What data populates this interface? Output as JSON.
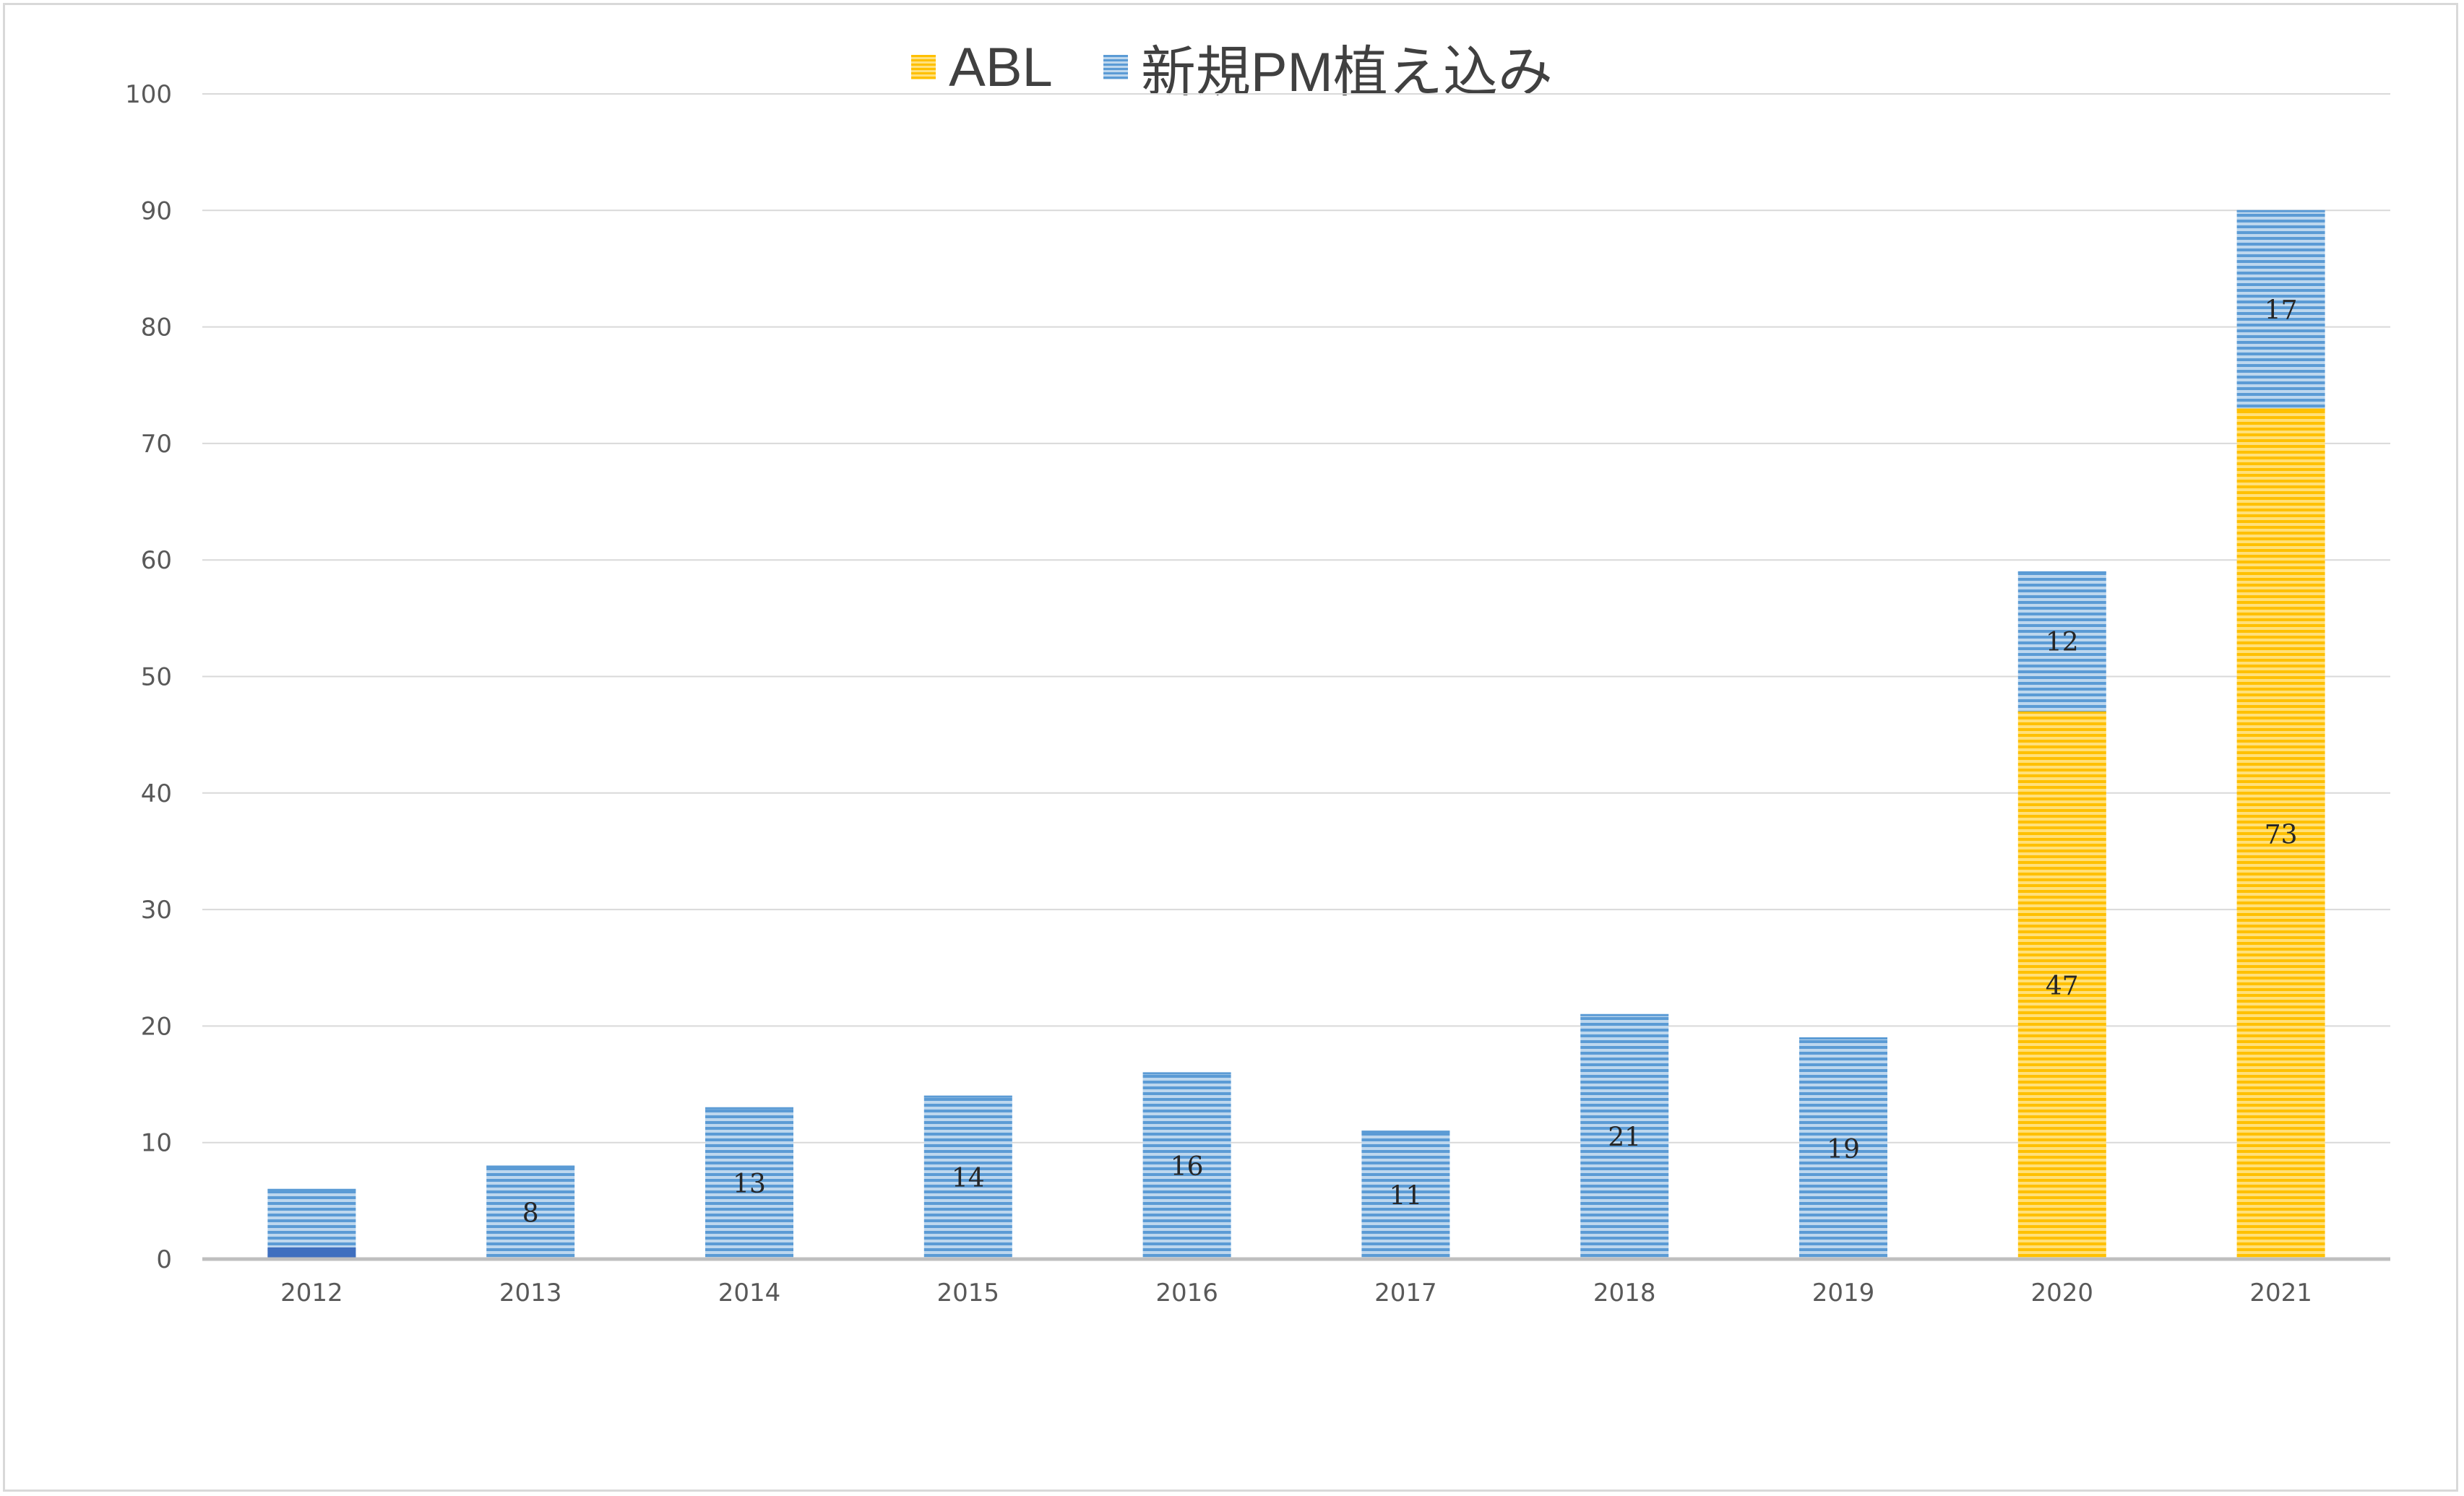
{
  "chart_data": {
    "type": "bar",
    "stacked": true,
    "categories": [
      "2012",
      "2013",
      "2014",
      "2015",
      "2016",
      "2017",
      "2018",
      "2019",
      "2020",
      "2021"
    ],
    "series": [
      {
        "name": "ABL",
        "values": [
          0,
          0,
          0,
          0,
          0,
          0,
          0,
          0,
          47,
          73
        ],
        "color": "#FFC000"
      },
      {
        "name": "新規PM植え込み",
        "values": [
          6,
          8,
          13,
          14,
          16,
          11,
          21,
          19,
          12,
          17
        ],
        "color": "#5B9BD5"
      }
    ],
    "data_labels": {
      "ABL": [
        null,
        null,
        null,
        null,
        null,
        null,
        null,
        null,
        "47",
        "73"
      ],
      "新規PM植え込み": [
        null,
        "8",
        "13",
        "14",
        "16",
        "11",
        "21",
        "19",
        "12",
        "17"
      ]
    },
    "ylim": [
      0,
      100
    ],
    "yticks": [
      0,
      10,
      20,
      30,
      40,
      50,
      60,
      70,
      80,
      90,
      100
    ],
    "grid": true,
    "legend_position": "top",
    "title": "",
    "xlabel": "",
    "ylabel": ""
  }
}
